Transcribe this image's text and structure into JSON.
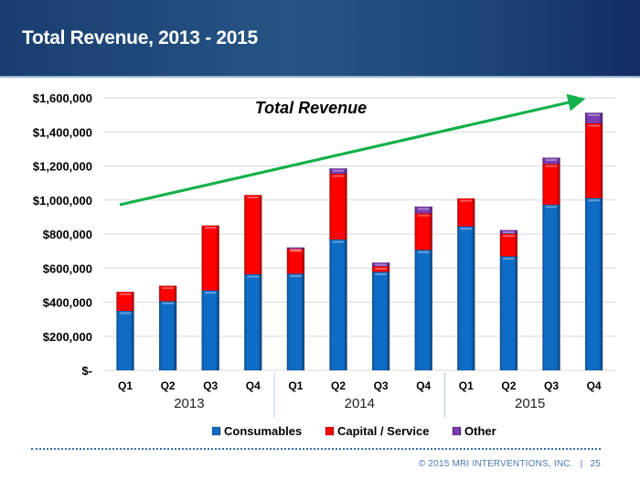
{
  "header": {
    "title": "Total Revenue, 2013 - 2015"
  },
  "footer": {
    "copyright": "© 2015 MRI INTERVENTIONS, INC.",
    "separator": "|",
    "page_number": "25"
  },
  "colors": {
    "consumables": "#0e6cc4",
    "capital_service": "#ff0000",
    "other": "#7030a0",
    "trend_arrow": "#13b04b",
    "gridline": "#d9d9d9",
    "header_bg": "#1f4a7c"
  },
  "chart_data": {
    "type": "bar",
    "stacked": true,
    "title": "",
    "annotation": "Total Revenue",
    "annotation_arrow": "upward trend arrow from 2013 Q1 to 2015 Q4",
    "xlabel": "",
    "ylabel": "",
    "ylim": [
      0,
      1600000
    ],
    "yticks": [
      0,
      200000,
      400000,
      600000,
      800000,
      1000000,
      1200000,
      1400000,
      1600000
    ],
    "ytick_labels": [
      "$-",
      "$200,000",
      "$400,000",
      "$600,000",
      "$800,000",
      "$1,000,000",
      "$1,200,000",
      "$1,400,000",
      "$1,600,000"
    ],
    "grid": true,
    "legend_position": "bottom",
    "categories": [
      "Q1",
      "Q2",
      "Q3",
      "Q4",
      "Q1",
      "Q2",
      "Q3",
      "Q4",
      "Q1",
      "Q2",
      "Q3",
      "Q4"
    ],
    "groups": [
      {
        "label": "2013",
        "quarters": 4
      },
      {
        "label": "2014",
        "quarters": 4
      },
      {
        "label": "2015",
        "quarters": 4
      }
    ],
    "series": [
      {
        "name": "Consumables",
        "color_key": "consumables",
        "values": [
          349000,
          406000,
          469000,
          564000,
          567000,
          768000,
          578000,
          707000,
          845000,
          669000,
          973000,
          1011000
        ]
      },
      {
        "name": "Capital / Service",
        "color_key": "capital_service",
        "values": [
          111000,
          90000,
          381000,
          465000,
          147000,
          386000,
          32000,
          215000,
          164000,
          133000,
          239000,
          439000
        ]
      },
      {
        "name": "Other",
        "color_key": "other",
        "values": [
          0,
          0,
          0,
          0,
          7000,
          31000,
          22000,
          39000,
          0,
          21000,
          36000,
          62000
        ]
      }
    ]
  }
}
